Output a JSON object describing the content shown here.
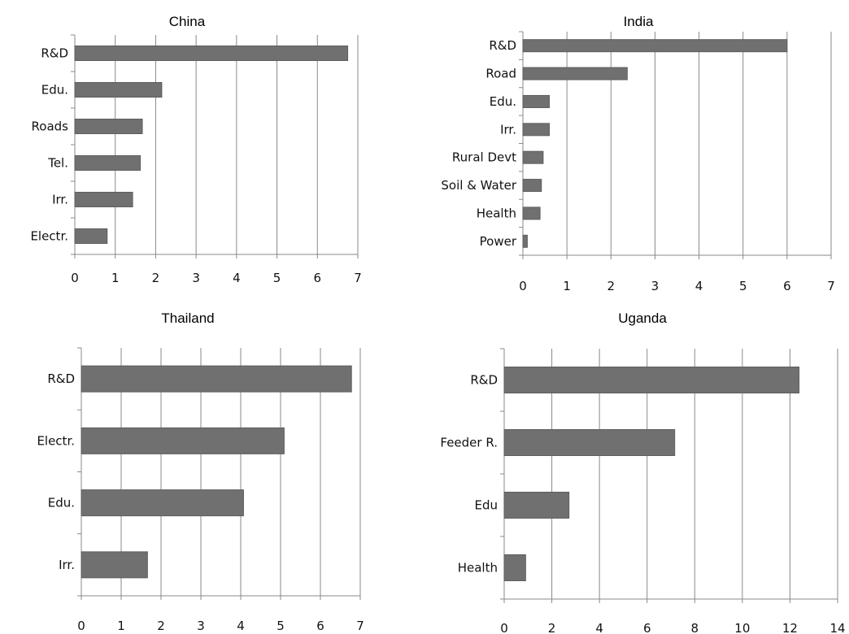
{
  "chart_data": [
    {
      "type": "bar",
      "orientation": "horizontal",
      "title": "China",
      "categories": [
        "R&D",
        "Edu.",
        "Roads",
        "Tel.",
        "Irr.",
        "Electr."
      ],
      "values": [
        6.75,
        2.15,
        1.67,
        1.62,
        1.43,
        0.8
      ],
      "xlim": [
        0,
        7
      ],
      "xticks": [
        0,
        1,
        2,
        3,
        4,
        5,
        6,
        7
      ],
      "grid": true
    },
    {
      "type": "bar",
      "orientation": "horizontal",
      "title": "India",
      "categories": [
        "R&D",
        "Road",
        "Edu.",
        "Irr.",
        "Rural Devt",
        "Soil & Water",
        "Health",
        "Power"
      ],
      "values": [
        6.0,
        2.37,
        0.6,
        0.6,
        0.46,
        0.42,
        0.39,
        0.1
      ],
      "xlim": [
        0,
        7
      ],
      "xticks": [
        0,
        1,
        2,
        3,
        4,
        5,
        6,
        7
      ],
      "grid": true
    },
    {
      "type": "bar",
      "orientation": "horizontal",
      "title": "Thailand",
      "categories": [
        "R&D",
        "Electr.",
        "Edu.",
        "Irr."
      ],
      "values": [
        6.78,
        5.09,
        4.07,
        1.66
      ],
      "xlim": [
        0,
        7
      ],
      "xticks": [
        0,
        1,
        2,
        3,
        4,
        5,
        6,
        7
      ],
      "grid": true
    },
    {
      "type": "bar",
      "orientation": "horizontal",
      "title": "Uganda",
      "categories": [
        "R&D",
        "Feeder R.",
        "Edu",
        "Health"
      ],
      "values": [
        12.38,
        7.16,
        2.72,
        0.9
      ],
      "xlim": [
        0,
        14
      ],
      "xticks": [
        0,
        2,
        4,
        6,
        8,
        10,
        12,
        14
      ],
      "grid": true
    }
  ]
}
